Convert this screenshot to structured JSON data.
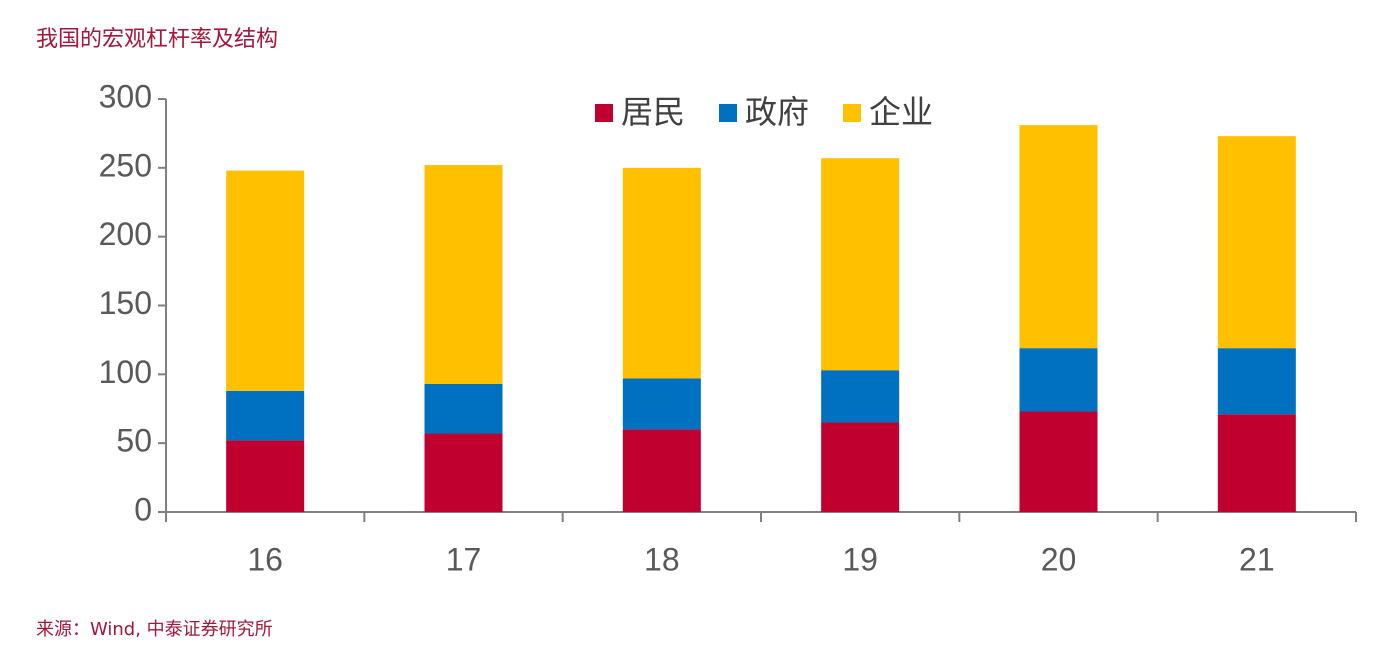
{
  "chart_data": {
    "type": "stacked_bar",
    "title": "我国的宏观杠杆率及结构",
    "source": "来源：Wind, 中泰证券研究所",
    "categories": [
      "16",
      "17",
      "18",
      "19",
      "20",
      "21"
    ],
    "series": [
      {
        "name": "居民",
        "color": "#c0002e",
        "values": [
          52,
          57,
          60,
          65,
          73,
          71
        ]
      },
      {
        "name": "政府",
        "color": "#0070c0",
        "values": [
          36,
          36,
          37,
          38,
          46,
          48
        ]
      },
      {
        "name": "企业",
        "color": "#ffc000",
        "values": [
          160,
          159,
          153,
          154,
          162,
          154
        ]
      }
    ],
    "ylim": [
      0,
      300
    ],
    "yticks": [
      0,
      50,
      100,
      150,
      200,
      250,
      300
    ],
    "legend": "top"
  }
}
